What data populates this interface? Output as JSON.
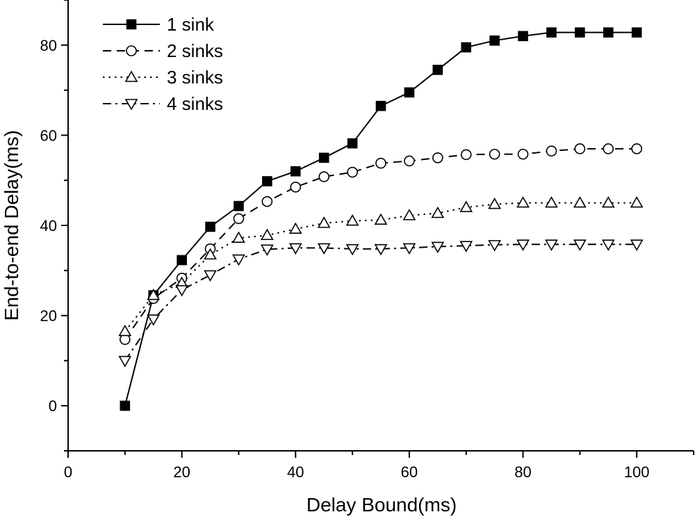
{
  "chart_data": {
    "type": "line",
    "title": "",
    "xlabel": "Delay Bound(ms)",
    "ylabel": "End-to-end Delay(ms)",
    "xlim": [
      0,
      110
    ],
    "ylim": [
      -10,
      90
    ],
    "xticks": [
      0,
      20,
      40,
      60,
      80,
      100
    ],
    "yticks": [
      0,
      20,
      40,
      60,
      80
    ],
    "grid": false,
    "legend_position": "top-left",
    "x": [
      10,
      15,
      20,
      25,
      30,
      35,
      40,
      45,
      50,
      55,
      60,
      65,
      70,
      75,
      80,
      85,
      90,
      95,
      100
    ],
    "series": [
      {
        "name": "1 sink",
        "marker": "filled-square",
        "line_style": "solid",
        "values": [
          0,
          24.5,
          32.3,
          39.7,
          44.3,
          49.8,
          52.0,
          55.0,
          58.2,
          66.5,
          69.5,
          74.5,
          79.5,
          81.0,
          82.0,
          82.8,
          82.8,
          82.8,
          82.8
        ]
      },
      {
        "name": "2 sinks",
        "marker": "open-circle",
        "line_style": "dashed",
        "values": [
          14.7,
          23.8,
          28.3,
          34.8,
          41.5,
          45.3,
          48.5,
          50.8,
          51.8,
          53.8,
          54.3,
          55.0,
          55.7,
          55.8,
          55.8,
          56.5,
          57.0,
          57.0,
          57.0
        ]
      },
      {
        "name": "3 sinks",
        "marker": "open-triangle-up",
        "line_style": "dotted",
        "values": [
          16.5,
          24.5,
          27.2,
          33.5,
          37.2,
          37.8,
          39.2,
          40.5,
          41.0,
          41.2,
          42.2,
          42.7,
          44.0,
          44.7,
          45.0,
          45.0,
          45.0,
          45.0,
          45.0
        ]
      },
      {
        "name": "4 sinks",
        "marker": "open-triangle-down",
        "line_style": "dash-dot",
        "values": [
          10.0,
          19.2,
          25.7,
          29.0,
          32.5,
          34.7,
          35.0,
          35.0,
          34.8,
          34.8,
          35.0,
          35.3,
          35.5,
          35.7,
          35.8,
          35.8,
          35.8,
          35.8,
          35.8
        ]
      }
    ]
  }
}
